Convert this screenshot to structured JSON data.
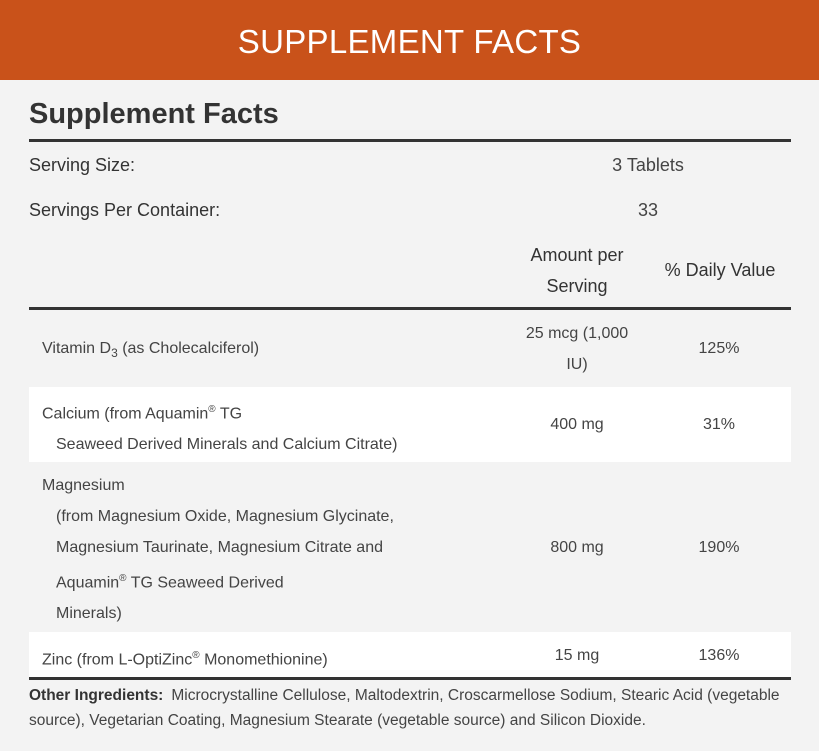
{
  "banner": {
    "title": "SUPPLEMENT FACTS",
    "color": "#c9521a"
  },
  "panel": {
    "title": "Supplement Facts",
    "serving_size_label": "Serving Size:",
    "serving_size_value": "3 Tablets",
    "servings_label": "Servings Per Container:",
    "servings_value": "33",
    "col_amount": "Amount per Serving",
    "col_amount_l1": "Amount per",
    "col_amount_l2": "Serving",
    "col_dv": "% Daily Value"
  },
  "rows": [
    {
      "name_l1": "Vitamin D",
      "sub": "3",
      "name_l1b": " (as Cholecalciferol)",
      "amount_l1": "25 mcg (1,000",
      "amount_l2": "IU)",
      "dv": "125%"
    },
    {
      "name_l1": "Calcium (from Aquamin",
      "reg": "®",
      "name_l1b": " TG",
      "name_l2": "Seaweed Derived Minerals and Calcium Citrate)",
      "amount": "400 mg",
      "dv": "31%"
    },
    {
      "name_l1": "Magnesium",
      "name_l2": "(from Magnesium Oxide, Magnesium Glycinate,",
      "name_l3": "Magnesium Taurinate, Magnesium Citrate and",
      "name_l4a": "Aquamin",
      "reg": "®",
      "name_l4b": " TG Seaweed Derived",
      "name_l5": "Minerals)",
      "amount": "800 mg",
      "dv": "190%"
    },
    {
      "name_a": "Zinc (from L-OptiZinc",
      "reg": "®",
      "name_b": " Monomethionine)",
      "amount": "15 mg",
      "dv": "136%"
    }
  ],
  "other": {
    "label": "Other Ingredients:",
    "text": "Microcrystalline Cellulose, Maltodextrin, Croscarmellose Sodium, Stearic Acid (vegetable source), Vegetarian Coating, Magnesium Stearate (vegetable source) and Silicon Dioxide."
  }
}
